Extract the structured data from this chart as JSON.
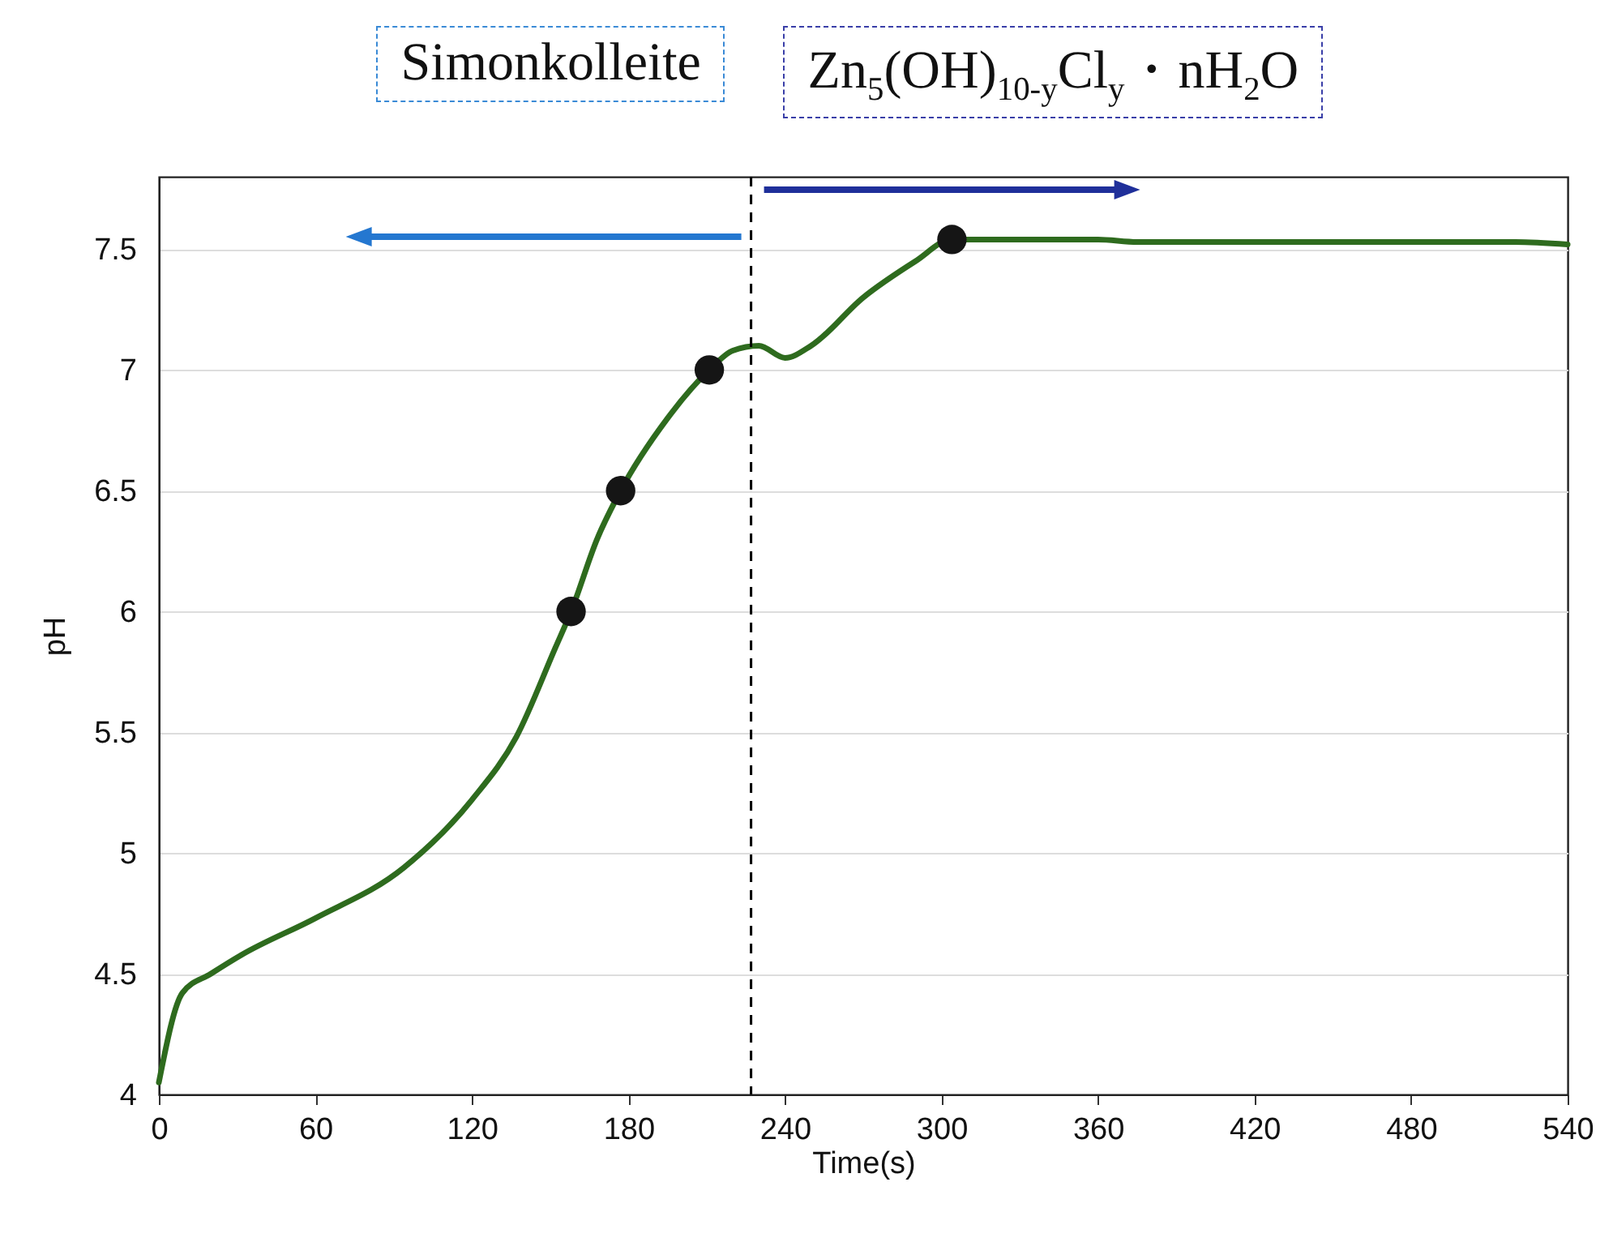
{
  "chart_data": {
    "type": "line",
    "xlabel": "Time(s)",
    "ylabel": "pH",
    "xlim": [
      0,
      540
    ],
    "xticks": [
      0,
      60,
      120,
      180,
      240,
      300,
      360,
      420,
      480,
      540
    ],
    "ylim": [
      4,
      7.8
    ],
    "yticks": [
      4,
      4.5,
      5,
      5.5,
      6,
      6.5,
      7,
      7.5
    ],
    "grid": "y",
    "series": [
      {
        "color": "#2e6b1e",
        "marker": "none",
        "x": [
          0,
          9,
          20,
          32,
          60,
          94,
          120,
          137,
          152,
          158,
          168,
          177,
          195,
          211,
          220,
          230,
          240,
          250,
          270,
          290,
          304,
          360,
          375,
          520,
          540
        ],
        "values": [
          4.05,
          4.42,
          4.5,
          4.58,
          4.73,
          4.94,
          5.22,
          5.48,
          5.85,
          6.0,
          6.3,
          6.5,
          6.8,
          7.0,
          7.08,
          7.1,
          7.05,
          7.1,
          7.3,
          7.45,
          7.54,
          7.54,
          7.53,
          7.53,
          7.52
        ]
      },
      {
        "type": "scatter",
        "color": "#151515",
        "marker": "circle",
        "x": [
          158,
          177,
          211,
          304
        ],
        "values": [
          6.0,
          6.5,
          7.0,
          7.54
        ]
      }
    ],
    "ref_lines": [
      {
        "axis": "x",
        "value": 227,
        "color": "#000000",
        "line_style": "dashed"
      }
    ],
    "annotations": [
      "Simonkolleite",
      "Zn$_{5}$(OH)$_{10-y}$Cl$_{y}$・nH$_{2}$O"
    ]
  }
}
